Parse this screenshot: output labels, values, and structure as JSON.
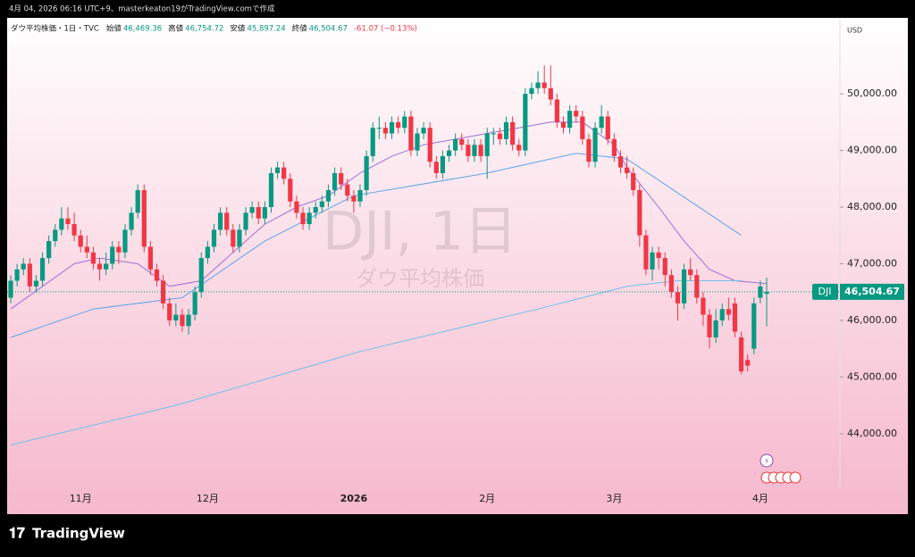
{
  "caption": "4月 04, 2026 06:16 UTC+9、masterkeaton19がTradingView.comで作成",
  "legend": {
    "symbol": "ダウ平均株価・1日・TVC",
    "items": [
      {
        "label": "始値",
        "value": "46,469.36"
      },
      {
        "label": "高値",
        "value": "46,754.72"
      },
      {
        "label": "安値",
        "value": "45,897.24"
      },
      {
        "label": "終値",
        "value": "46,504.67"
      }
    ],
    "change": "-61.07 (−0.13%)"
  },
  "currency": "USD",
  "watermark": {
    "title": "DJI, 1日",
    "subtitle": "ダウ平均株価"
  },
  "price_badge": {
    "symbol": "DJI",
    "label": "46,504.67"
  },
  "brand": "TradingView",
  "chart_data": {
    "type": "candlestick",
    "categories": [
      null,
      null,
      null,
      null,
      null,
      null,
      null,
      null,
      null,
      null,
      null,
      "11月",
      null,
      null,
      null,
      null,
      null,
      null,
      null,
      null,
      null,
      null,
      null,
      null,
      null,
      null,
      null,
      null,
      null,
      null,
      null,
      "12月",
      null,
      null,
      null,
      null,
      null,
      null,
      null,
      null,
      null,
      null,
      null,
      null,
      null,
      null,
      null,
      null,
      null,
      null,
      null,
      null,
      null,
      null,
      "2026",
      null,
      null,
      null,
      null,
      null,
      null,
      null,
      null,
      null,
      null,
      null,
      null,
      null,
      null,
      null,
      null,
      null,
      null,
      null,
      null,
      "2月",
      null,
      null,
      null,
      null,
      null,
      null,
      null,
      null,
      null,
      null,
      null,
      null,
      null,
      null,
      null,
      null,
      null,
      null,
      null,
      "3月",
      null,
      null,
      null,
      null,
      null,
      null,
      null,
      null,
      null,
      null,
      null,
      null,
      null,
      null,
      null,
      null,
      null,
      null,
      null,
      null,
      null,
      null,
      "4月",
      null
    ],
    "open": [
      46400,
      46700,
      46900,
      47000,
      46600,
      46700,
      47100,
      47400,
      47600,
      47800,
      47700,
      47500,
      47300,
      47200,
      47000,
      46900,
      47000,
      47300,
      47200,
      47600,
      47900,
      48300,
      47300,
      46900,
      46700,
      46300,
      46000,
      46100,
      45900,
      46100,
      46500,
      47100,
      47300,
      47600,
      47900,
      47600,
      47300,
      47600,
      47900,
      48000,
      47800,
      48000,
      48600,
      48700,
      48500,
      48100,
      47900,
      47700,
      47900,
      48000,
      48100,
      48300,
      48600,
      48400,
      48200,
      48100,
      48300,
      48900,
      49400,
      49400,
      49300,
      49500,
      49400,
      49600,
      49000,
      49300,
      49400,
      48800,
      48600,
      48900,
      49000,
      49200,
      49100,
      48900,
      49100,
      48900,
      49300,
      49300,
      49200,
      49500,
      49100,
      49000,
      50000,
      50100,
      50200,
      50100,
      49900,
      49500,
      49400,
      49700,
      49600,
      49200,
      48800,
      49400,
      49600,
      49200,
      48900,
      48700,
      48600,
      48300,
      47500,
      46900,
      47200,
      47100,
      46800,
      46500,
      46300,
      46900,
      46800,
      46400,
      46100,
      45700,
      46000,
      46200,
      46300,
      45700,
      45300,
      45500,
      46400,
      46469.36
    ],
    "high": [
      46800,
      47000,
      47100,
      47100,
      46800,
      47200,
      47500,
      47700,
      48000,
      48000,
      47900,
      47600,
      47500,
      47300,
      47100,
      47200,
      47400,
      47400,
      47700,
      48000,
      48400,
      48400,
      47400,
      47000,
      46800,
      46400,
      46300,
      46200,
      46200,
      46600,
      47200,
      47400,
      47700,
      48000,
      48000,
      47700,
      47700,
      48000,
      48100,
      48100,
      48100,
      48700,
      48800,
      48800,
      48600,
      48200,
      48000,
      48000,
      48100,
      48200,
      48400,
      48700,
      48700,
      48500,
      48300,
      48400,
      49000,
      49500,
      49600,
      49500,
      49600,
      49600,
      49700,
      49700,
      49400,
      49500,
      49500,
      48900,
      49000,
      49100,
      49300,
      49300,
      49200,
      49200,
      49200,
      49400,
      49400,
      49400,
      49600,
      49600,
      49200,
      50100,
      50200,
      50400,
      50500,
      50500,
      50000,
      49600,
      49800,
      49800,
      49700,
      49300,
      49500,
      49800,
      49700,
      49300,
      49000,
      48900,
      48700,
      48400,
      47600,
      47300,
      47300,
      47200,
      46900,
      46600,
      47000,
      47100,
      46900,
      46500,
      46200,
      46200,
      46300,
      46400,
      46400,
      45800,
      45400,
      46400,
      46700,
      46754.72
    ],
    "low": [
      46300,
      46600,
      46800,
      46500,
      46500,
      46600,
      47000,
      47300,
      47500,
      47600,
      47400,
      47200,
      47100,
      46900,
      46700,
      46800,
      46900,
      47000,
      47100,
      47500,
      47800,
      47200,
      46800,
      46600,
      46200,
      45900,
      45900,
      45800,
      45750,
      46000,
      46400,
      47000,
      47200,
      47500,
      47500,
      47200,
      47200,
      47500,
      47800,
      47700,
      47700,
      47900,
      48500,
      48400,
      48000,
      47800,
      47600,
      47600,
      47800,
      47900,
      48000,
      48200,
      48300,
      48100,
      47900,
      48000,
      48200,
      48800,
      49200,
      49200,
      49200,
      49300,
      49300,
      48900,
      48900,
      49200,
      48700,
      48500,
      48500,
      48800,
      48900,
      49000,
      48800,
      48800,
      48800,
      48500,
      49100,
      49100,
      49100,
      49000,
      48900,
      48900,
      49900,
      50000,
      50000,
      49800,
      49400,
      49300,
      49300,
      49500,
      49100,
      48700,
      48700,
      49300,
      49100,
      48800,
      48600,
      48500,
      48200,
      47300,
      46800,
      46700,
      46900,
      46600,
      46400,
      46000,
      46200,
      46700,
      46300,
      45900,
      45500,
      45600,
      45900,
      46000,
      45700,
      45050,
      45100,
      45400,
      46300,
      45897.24
    ],
    "close": [
      46700,
      46900,
      47000,
      46600,
      46700,
      47100,
      47400,
      47600,
      47800,
      47700,
      47500,
      47300,
      47200,
      47000,
      46900,
      47000,
      47300,
      47200,
      47600,
      47900,
      48300,
      47300,
      46900,
      46700,
      46300,
      46000,
      46100,
      45900,
      46100,
      46500,
      47100,
      47300,
      47600,
      47900,
      47600,
      47300,
      47600,
      47900,
      48000,
      47800,
      48000,
      48600,
      48700,
      48500,
      48100,
      47900,
      47700,
      47900,
      48000,
      48100,
      48300,
      48600,
      48400,
      48200,
      48100,
      48300,
      48900,
      49400,
      49400,
      49300,
      49500,
      49400,
      49600,
      49000,
      49300,
      49400,
      48800,
      48600,
      48900,
      49000,
      49200,
      49100,
      48900,
      49100,
      48900,
      49300,
      49300,
      49200,
      49500,
      49100,
      49000,
      50000,
      50100,
      50200,
      50100,
      49900,
      49500,
      49400,
      49700,
      49600,
      49200,
      48800,
      49400,
      49600,
      49200,
      48900,
      48700,
      48600,
      48300,
      47500,
      46900,
      47200,
      47100,
      46800,
      46500,
      46300,
      46900,
      46800,
      46400,
      46100,
      45700,
      46000,
      46200,
      46100,
      45800,
      45100,
      45200,
      46300,
      46600,
      46504.67
    ],
    "colors": {
      "up": "#089981",
      "down": "#f23645"
    },
    "moving_averages": [
      {
        "color": "#9c6fd6",
        "x": [
          0,
          10,
          14,
          20,
          25,
          30,
          35,
          40,
          45,
          50,
          55,
          60,
          65,
          70,
          75,
          80,
          85,
          90,
          95,
          97,
          102,
          106,
          110,
          114,
          119
        ],
        "values": [
          46200,
          47000,
          47100,
          47000,
          46600,
          46700,
          47200,
          47700,
          48000,
          48200,
          48600,
          48900,
          49100,
          49200,
          49300,
          49400,
          49500,
          49500,
          49100,
          48700,
          48000,
          47400,
          46900,
          46700,
          46650
        ]
      },
      {
        "color": "#5aa6e8",
        "x": [
          0,
          13,
          27,
          40,
          54,
          75,
          89,
          97,
          105,
          115
        ],
        "values": [
          45700,
          46200,
          46400,
          47400,
          48200,
          48600,
          48950,
          48850,
          48250,
          47500
        ]
      },
      {
        "color": "#6ec1ea",
        "x": [
          0,
          26,
          55,
          83,
          97,
          105,
          115
        ],
        "values": [
          43800,
          44500,
          45450,
          46200,
          46600,
          46700,
          46700
        ]
      }
    ],
    "ylim": [
      43020,
      51310
    ],
    "yticks": [
      {
        "value": 44000,
        "label": "44,000.00"
      },
      {
        "value": 45000,
        "label": "45,000.00"
      },
      {
        "value": 46000,
        "label": "46,000.00"
      },
      {
        "value": 47000,
        "label": "47,000.00"
      },
      {
        "value": 48000,
        "label": "48,000.00"
      },
      {
        "value": 49000,
        "label": "49,000.00"
      },
      {
        "value": 50000,
        "label": "50,000.00"
      }
    ],
    "grid": false
  }
}
